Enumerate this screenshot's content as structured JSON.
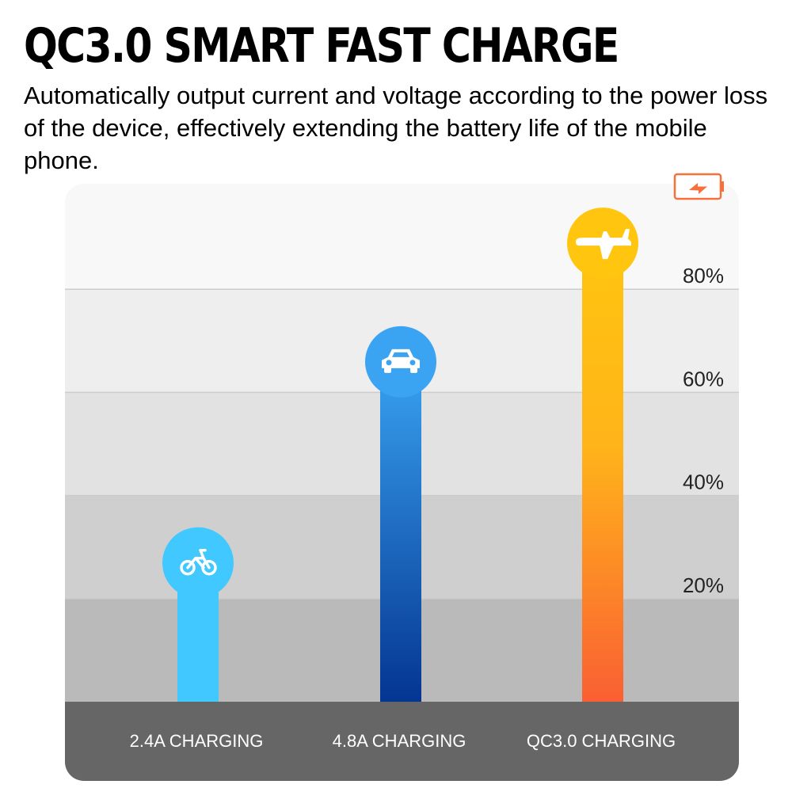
{
  "header": {
    "title": "QC3.0 SMART FAST CHARGE",
    "subtitle": "Automatically output current and voltage according to the power loss of the device, effectively extending the battery life of the mobile phone."
  },
  "chart_data": {
    "type": "bar",
    "title": "",
    "xlabel": "",
    "ylabel": "",
    "categories": [
      "2.4A CHARGING",
      "4.8A CHARGING",
      "QC3.0 CHARGING"
    ],
    "values": [
      28,
      67,
      90
    ],
    "ylim": [
      0,
      100
    ],
    "yticks": [
      20,
      40,
      60,
      80
    ],
    "ytick_labels": [
      "20%",
      "40%",
      "60%",
      "80%"
    ],
    "grid": true,
    "bar_icons": [
      "bicycle-icon",
      "car-icon",
      "airplane-icon"
    ],
    "legend_icon": "battery-charging-icon",
    "colors": {
      "bar1": "#40c8ff",
      "bar2_top": "#3aa4f2",
      "bar2_bottom": "#043592",
      "bar3_top": "#ffc50f",
      "bar3_bottom": "#fa5f33",
      "base": "#666666",
      "battery": "#f7703a"
    }
  }
}
